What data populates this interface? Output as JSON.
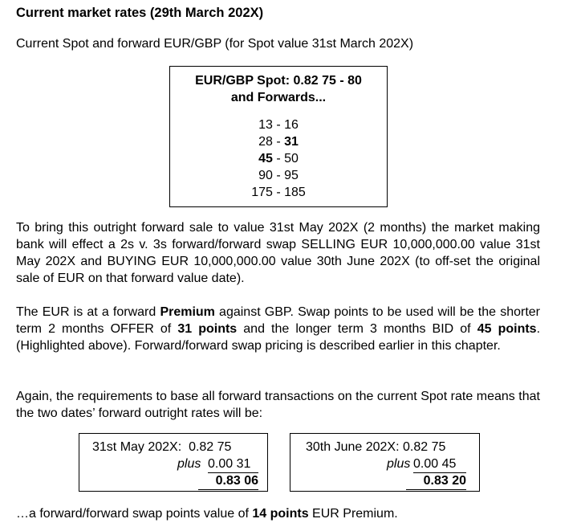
{
  "heading": "Current market rates (29th March 202X)",
  "intro": "Current Spot and forward EUR/GBP (for Spot value 31st March 202X)",
  "quote_box": {
    "title_line1": "EUR/GBP Spot: 0.82 75 - 80",
    "title_line2": "and Forwards...",
    "rows": [
      {
        "left": "13",
        "sep": " - ",
        "right": "16"
      },
      {
        "left": "28",
        "sep": " - ",
        "right": "31"
      },
      {
        "left": "45",
        "sep": " - ",
        "right": "50"
      },
      {
        "left": "90",
        "sep": " - ",
        "right": "95"
      },
      {
        "left": "175",
        "sep": " - ",
        "right": "185"
      }
    ]
  },
  "para1": "To bring this outright forward sale to value 31st May 202X (2 months) the market making bank will effect a 2s v. 3s forward/forward swap SELLING EUR 10,000,000.00 value 31st May 202X and BUYING EUR 10,000,000.00 value 30th June 202X (to off-set the original sale of EUR on that forward value date).",
  "para2": {
    "a": "The EUR is at a forward ",
    "b": "Premium",
    "c": " against GBP. Swap points to be used will be the shorter term 2 months OFFER of ",
    "d": "31 points",
    "e": " and the longer term 3 months BID of ",
    "f": "45 points",
    "g": ". (Highlighted above). Forward/forward swap pricing is described earlier in this chapter."
  },
  "para3": "Again, the requirements to base all forward transactions on the current Spot rate means that the two dates’ forward outright rates will be:",
  "outright1": {
    "line1": "31st May 202X:  0.82 75",
    "plus": "plus",
    "plus_value": "0.00 31",
    "result": "0.83 06"
  },
  "outright2": {
    "line1": "30th June 202X: 0.82 75",
    "plus": "plus",
    "plus_value": "0.00 45",
    "result": "0.83 20"
  },
  "final": {
    "a": "…a forward/forward swap points value of ",
    "b": "14 points",
    "c": " EUR Premium."
  }
}
